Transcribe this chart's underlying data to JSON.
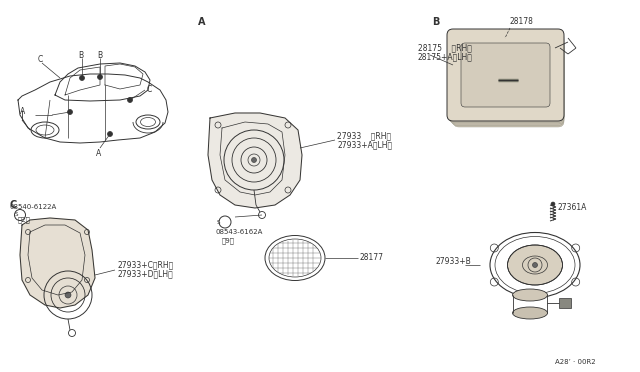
{
  "bg_color": "#ffffff",
  "line_color": "#333333",
  "text_color": "#333333",
  "labels": {
    "sec_A": "A",
    "sec_B": "B",
    "sec_C": "C",
    "p27933_RH": "27933    〈RH〉",
    "p27933A_LH": "27933+A〈LH〉",
    "p08543": "08543-6162A",
    "p08543_qty": "（9）",
    "p28177": "28177",
    "p28178": "28178",
    "p28175_RH": "28175    〈RH〉",
    "p28175A_LH": "28175+A〈LH〉",
    "p27361A": "27361A",
    "p27933B": "27933+B",
    "p08540": "08540-6122A",
    "p08540_qty": "（2）",
    "p27933C_RH": "27933+C〈RH〉",
    "p27933D_LH": "27933+D〈LH〉",
    "ref": "A28’ · 00R2"
  }
}
